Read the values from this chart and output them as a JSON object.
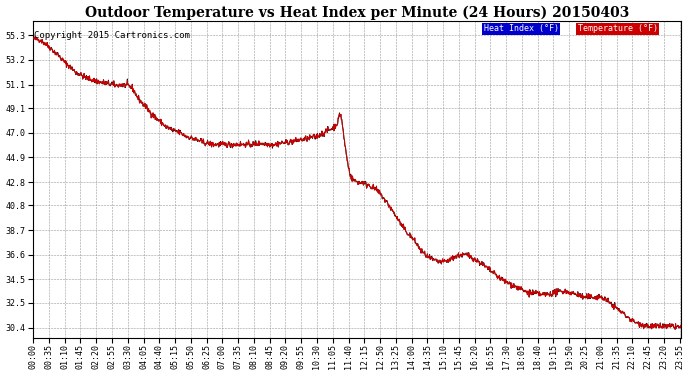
{
  "title": "Outdoor Temperature vs Heat Index per Minute (24 Hours) 20150403",
  "copyright": "Copyright 2015 Cartronics.com",
  "legend_heat_label": "Heat Index (°F)",
  "legend_temp_label": "Temperature (°F)",
  "heat_index_color": "#111111",
  "temp_color": "#cc0000",
  "legend_heat_bg": "#0000cc",
  "legend_temp_bg": "#cc0000",
  "ylim_min": 29.5,
  "ylim_max": 56.5,
  "yticks": [
    30.4,
    32.5,
    34.5,
    36.6,
    38.7,
    40.8,
    42.8,
    44.9,
    47.0,
    49.1,
    51.1,
    53.2,
    55.3
  ],
  "bg_color": "#ffffff",
  "grid_color": "#999999",
  "title_fontsize": 10,
  "tick_fontsize": 6,
  "copyright_fontsize": 6.5
}
